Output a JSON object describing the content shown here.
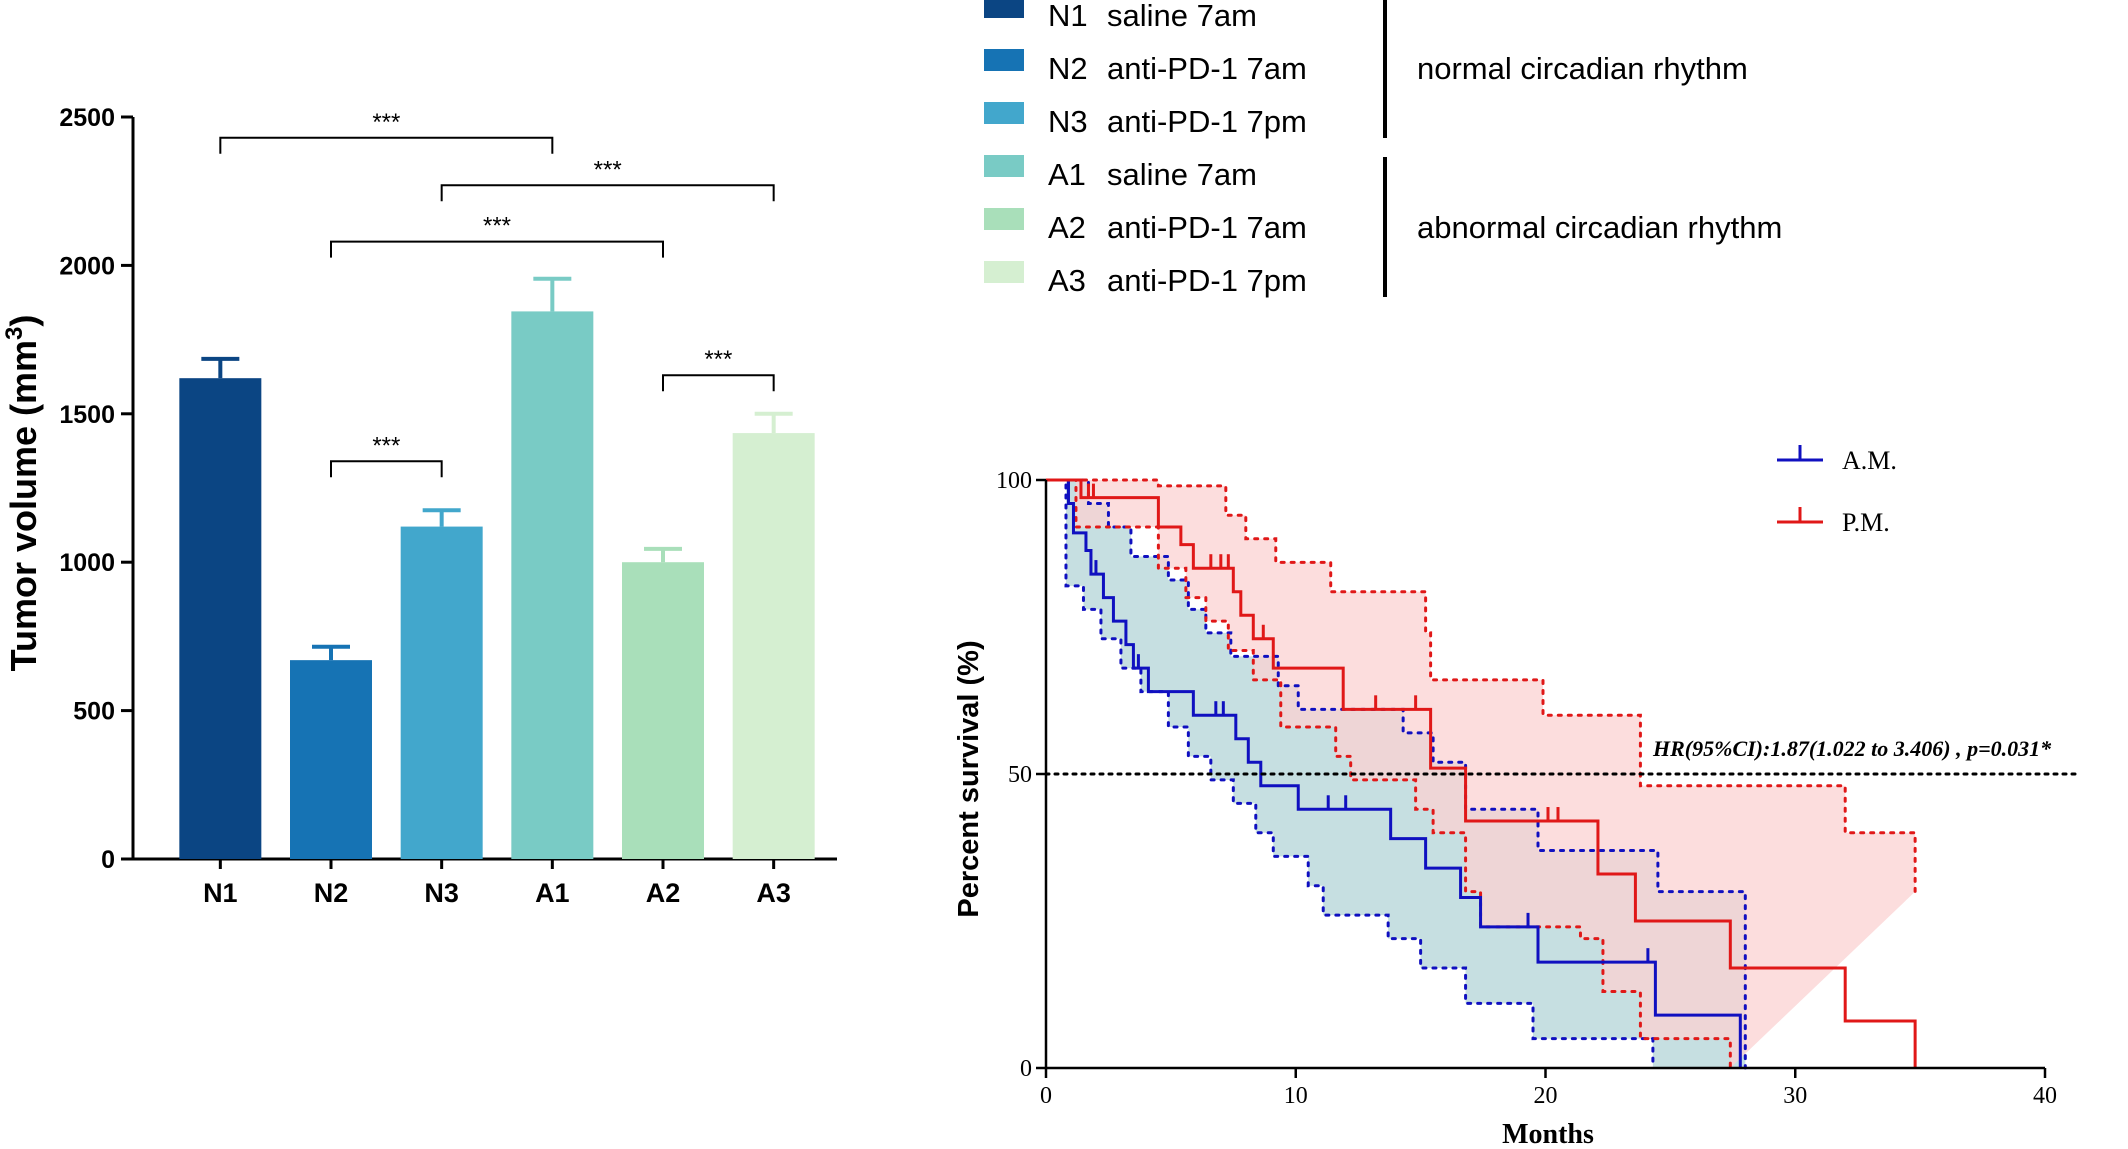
{
  "chart_data": [
    {
      "type": "bar",
      "ylabel": "Tumor volume (mm",
      "ylabel_sup": "3",
      "ylabel_close": ")",
      "ylim": [
        0,
        2500
      ],
      "yticks": [
        0,
        500,
        1000,
        1500,
        2000,
        2500
      ],
      "categories": [
        "N1",
        "N2",
        "N3",
        "A1",
        "A2",
        "A3"
      ],
      "values": [
        1620,
        670,
        1120,
        1845,
        1000,
        1435
      ],
      "errors": [
        65,
        45,
        55,
        110,
        45,
        65
      ],
      "colors": [
        "#0b4583",
        "#1673b4",
        "#42a7cc",
        "#79cbc5",
        "#a9dfba",
        "#d5efd1"
      ],
      "significance": [
        {
          "from": "N1",
          "to": "A1",
          "y": 2430,
          "label": "***"
        },
        {
          "from": "N3",
          "to": "A3",
          "y": 2270,
          "label": "***"
        },
        {
          "from": "N2",
          "to": "A2",
          "y": 2080,
          "label": "***"
        },
        {
          "from": "A2",
          "to": "A3",
          "y": 1630,
          "label": "***"
        },
        {
          "from": "N2",
          "to": "N3",
          "y": 1340,
          "label": "***"
        }
      ],
      "legend": {
        "entries": [
          {
            "code": "N1",
            "label": "saline 7am",
            "color": "#0b4583"
          },
          {
            "code": "N2",
            "label": "anti-PD-1 7am",
            "color": "#1673b4"
          },
          {
            "code": "N3",
            "label": "anti-PD-1 7pm",
            "color": "#42a7cc"
          },
          {
            "code": "A1",
            "label": "saline 7am",
            "color": "#79cbc5"
          },
          {
            "code": "A2",
            "label": "anti-PD-1 7am",
            "color": "#a9dfba"
          },
          {
            "code": "A3",
            "label": "anti-PD-1 7pm",
            "color": "#d5efd1"
          }
        ],
        "groups": [
          {
            "label": "normal circadian rhythm",
            "members": [
              "N1",
              "N2",
              "N3"
            ]
          },
          {
            "label": "abnormal circadian rhythm",
            "members": [
              "A1",
              "A2",
              "A3"
            ]
          }
        ]
      }
    },
    {
      "type": "line",
      "subtype": "kaplan-meier",
      "xlabel": "Months",
      "ylabel": "Percent survival (%)",
      "xlim": [
        0,
        40
      ],
      "ylim": [
        0,
        100
      ],
      "xticks": [
        0,
        10,
        20,
        30,
        40
      ],
      "yticks": [
        0,
        50,
        100
      ],
      "reference_y": 50,
      "annotation": "HR(95%CI):1.87(1.022 to 3.406)  , p=0.031*",
      "series": [
        {
          "name": "A.M.",
          "color": "#1010c0",
          "band_color": "#bcd9dc",
          "steps": [
            [
              0,
              100
            ],
            [
              0.9,
              96
            ],
            [
              1.1,
              91
            ],
            [
              1.6,
              88
            ],
            [
              1.8,
              84
            ],
            [
              2.3,
              80
            ],
            [
              2.7,
              76
            ],
            [
              3.2,
              72
            ],
            [
              3.5,
              68
            ],
            [
              4.1,
              64
            ],
            [
              5.9,
              60
            ],
            [
              7.6,
              56
            ],
            [
              8.1,
              52
            ],
            [
              8.6,
              48
            ],
            [
              10.1,
              44
            ],
            [
              13.8,
              39
            ],
            [
              15.2,
              34
            ],
            [
              16.6,
              29
            ],
            [
              17.4,
              24
            ],
            [
              19.7,
              18
            ],
            [
              24.4,
              9
            ],
            [
              27.8,
              0
            ]
          ],
          "censor": [
            [
              2.0,
              84
            ],
            [
              3.7,
              68
            ],
            [
              6.8,
              60
            ],
            [
              7.1,
              60
            ],
            [
              11.3,
              44
            ],
            [
              12.0,
              44
            ],
            [
              19.3,
              24
            ],
            [
              24.1,
              18
            ]
          ],
          "lower": [
            [
              0.6,
              100
            ],
            [
              0.8,
              82
            ],
            [
              1.5,
              78
            ],
            [
              2.2,
              73
            ],
            [
              3.0,
              68
            ],
            [
              3.8,
              64
            ],
            [
              4.9,
              58
            ],
            [
              5.7,
              53
            ],
            [
              6.6,
              49
            ],
            [
              7.5,
              45
            ],
            [
              8.4,
              40
            ],
            [
              9.1,
              36
            ],
            [
              10.5,
              31
            ],
            [
              11.1,
              26
            ],
            [
              13.7,
              22
            ],
            [
              15.0,
              17
            ],
            [
              16.8,
              11
            ],
            [
              19.5,
              5
            ],
            [
              24.3,
              0
            ]
          ],
          "upper": [
            [
              1.4,
              100
            ],
            [
              1.7,
              96
            ],
            [
              2.5,
              92
            ],
            [
              3.4,
              87
            ],
            [
              4.9,
              83
            ],
            [
              5.7,
              78
            ],
            [
              6.4,
              74
            ],
            [
              7.4,
              70
            ],
            [
              9.3,
              65
            ],
            [
              10.1,
              61
            ],
            [
              13.0,
              61
            ],
            [
              14.3,
              57
            ],
            [
              15.5,
              52
            ],
            [
              16.8,
              44
            ],
            [
              18.8,
              44
            ],
            [
              19.7,
              37
            ],
            [
              21.5,
              37
            ],
            [
              24.3,
              37
            ],
            [
              24.5,
              30
            ],
            [
              28,
              30
            ],
            [
              28,
              0
            ]
          ]
        },
        {
          "name": "P.M.",
          "color": "#e01818",
          "band_color": "#fbd1d1",
          "steps": [
            [
              0,
              100
            ],
            [
              0.7,
              100
            ],
            [
              1.4,
              97
            ],
            [
              4.3,
              97
            ],
            [
              4.5,
              92
            ],
            [
              5.4,
              89
            ],
            [
              5.9,
              85
            ],
            [
              7.5,
              81
            ],
            [
              7.8,
              77
            ],
            [
              8.3,
              73
            ],
            [
              9.1,
              68
            ],
            [
              11.9,
              61
            ],
            [
              15.4,
              51
            ],
            [
              16.8,
              42
            ],
            [
              20.7,
              42
            ],
            [
              22.1,
              33
            ],
            [
              23.6,
              25
            ],
            [
              27.4,
              17
            ],
            [
              32,
              8
            ],
            [
              34.8,
              0
            ]
          ],
          "censor": [
            [
              1.7,
              97
            ],
            [
              1.9,
              97
            ],
            [
              6.6,
              85
            ],
            [
              7.0,
              85
            ],
            [
              7.3,
              85
            ],
            [
              8.7,
              73
            ],
            [
              13.2,
              61
            ],
            [
              14.8,
              61
            ],
            [
              20.1,
              42
            ],
            [
              20.5,
              42
            ]
          ],
          "lower": [
            [
              0.7,
              100
            ],
            [
              1.2,
              92
            ],
            [
              3.4,
              92
            ],
            [
              4.5,
              85
            ],
            [
              5.6,
              80
            ],
            [
              6.4,
              76
            ],
            [
              7.3,
              71
            ],
            [
              8.3,
              66
            ],
            [
              9.4,
              58
            ],
            [
              11.6,
              53
            ],
            [
              12.2,
              49
            ],
            [
              14.8,
              44
            ],
            [
              15.5,
              40
            ],
            [
              16.8,
              30
            ],
            [
              17.4,
              24
            ],
            [
              20.5,
              24
            ],
            [
              21.4,
              22
            ],
            [
              22.3,
              13
            ],
            [
              23.5,
              13
            ],
            [
              23.8,
              5
            ],
            [
              27.3,
              5
            ],
            [
              27.4,
              0
            ]
          ],
          "upper": [
            [
              0.7,
              100
            ],
            [
              3.0,
              100
            ],
            [
              4.5,
              99
            ],
            [
              7.2,
              94
            ],
            [
              8.0,
              90
            ],
            [
              9.2,
              86
            ],
            [
              11.4,
              81
            ],
            [
              15.2,
              74
            ],
            [
              15.4,
              66
            ],
            [
              19.9,
              60
            ],
            [
              20.5,
              60
            ],
            [
              23.8,
              48
            ],
            [
              27.4,
              48
            ],
            [
              32,
              40
            ],
            [
              34.8,
              40
            ],
            [
              34.8,
              30
            ]
          ]
        }
      ],
      "legend_position": "top-right"
    }
  ]
}
